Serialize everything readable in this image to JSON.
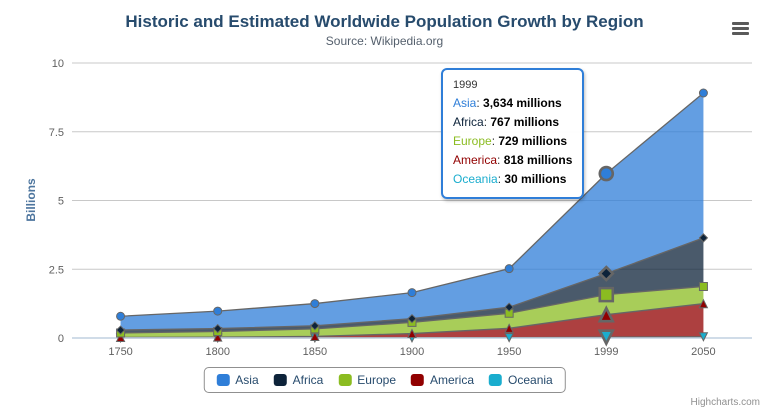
{
  "chart": {
    "title": "Historic and Estimated Worldwide Population Growth by Region",
    "subtitle": "Source: Wikipedia.org",
    "y_axis_title": "Billions",
    "credits": "Highcharts.com"
  },
  "icons": {
    "context_menu": "hamburger-menu-icon"
  },
  "chart_data": {
    "type": "area",
    "stacking": "normal",
    "title": "Historic and Estimated Worldwide Population Growth by Region",
    "subtitle": "Source: Wikipedia.org",
    "categories": [
      "1750",
      "1800",
      "1850",
      "1900",
      "1950",
      "1999",
      "2050"
    ],
    "series": [
      {
        "name": "Asia",
        "color": "#2f7ed8",
        "marker": "circle",
        "values": [
          502,
          635,
          809,
          947,
          1402,
          3634,
          5268
        ]
      },
      {
        "name": "Africa",
        "color": "#0d233a",
        "marker": "diamond",
        "values": [
          106,
          107,
          111,
          133,
          221,
          767,
          1766
        ]
      },
      {
        "name": "Europe",
        "color": "#8bbc21",
        "marker": "square",
        "values": [
          163,
          203,
          276,
          408,
          547,
          729,
          628
        ]
      },
      {
        "name": "America",
        "color": "#910000",
        "marker": "triangle",
        "values": [
          18,
          31,
          54,
          156,
          339,
          818,
          1201
        ]
      },
      {
        "name": "Oceania",
        "color": "#1aadce",
        "marker": "triangle-down",
        "values": [
          2,
          2,
          2,
          6,
          13,
          30,
          46
        ]
      }
    ],
    "stack_order_bottom_to_top": [
      "Oceania",
      "America",
      "Europe",
      "Africa",
      "Asia"
    ],
    "unit": "millions",
    "xlabel": "",
    "ylabel": "Billions",
    "ylim_millions": [
      0,
      10000
    ],
    "y_ticks": [
      "0",
      "2.5",
      "5",
      "7.5",
      "10"
    ],
    "grid": "horizontal",
    "legend_position": "bottom-center",
    "hover_category_index": 5
  },
  "tooltip": {
    "header": "1999",
    "unit_suffix": " millions",
    "rows": [
      {
        "name": "Asia",
        "color": "#2f7ed8",
        "value": "3,634 millions"
      },
      {
        "name": "Africa",
        "color": "#0d233a",
        "value": "767 millions"
      },
      {
        "name": "Europe",
        "color": "#8bbc21",
        "value": "729 millions"
      },
      {
        "name": "America",
        "color": "#910000",
        "value": "818 millions"
      },
      {
        "name": "Oceania",
        "color": "#1aadce",
        "value": "30 millions"
      }
    ]
  }
}
